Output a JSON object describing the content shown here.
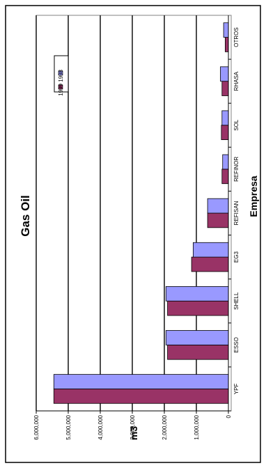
{
  "chart_data": {
    "type": "bar",
    "orientation": "horizontal",
    "rotated_view": "page rotated 90 degrees counter-clockwise",
    "title": "Gas Oil",
    "xlabel": "Empresa",
    "ylabel": "m3",
    "categories": [
      "YPF",
      "ESSO",
      "SHELL",
      "EG3",
      "REFISAN",
      "REFINOR",
      "SOL",
      "RHASA",
      "OTROS"
    ],
    "series": [
      {
        "name": "1999",
        "color": "#993366",
        "values": [
          5450000,
          1900000,
          1900000,
          1150000,
          650000,
          200000,
          220000,
          200000,
          100000
        ]
      },
      {
        "name": "1998",
        "color": "#9999ff",
        "values": [
          5450000,
          1950000,
          1950000,
          1100000,
          650000,
          180000,
          200000,
          250000,
          150000
        ]
      }
    ],
    "ylim": [
      0,
      6000000
    ],
    "ticks": [
      "6,000,000",
      "5,000,000",
      "4,000,000",
      "3,000,000",
      "2,000,000",
      "1,000,000",
      "0"
    ],
    "tick_values": [
      6000000,
      5000000,
      4000000,
      3000000,
      2000000,
      1000000,
      0
    ],
    "grid": true,
    "legend_position": "top-right (rotated)"
  }
}
